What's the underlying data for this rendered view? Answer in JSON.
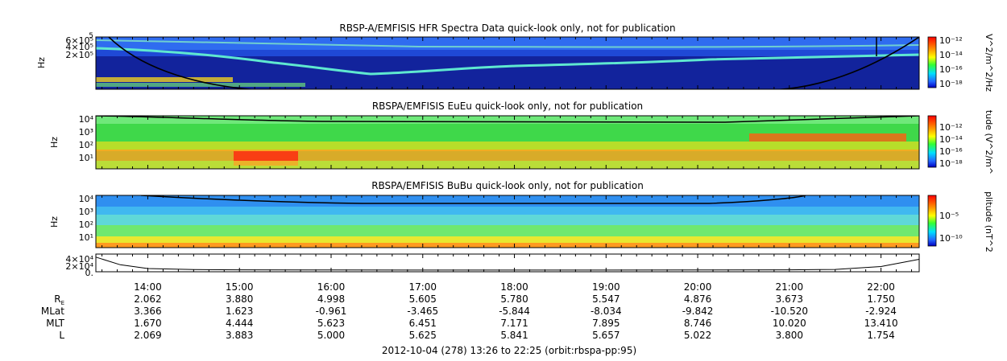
{
  "chart_data": {
    "type": "heatmap",
    "time_range": {
      "start": "13:26",
      "end": "22:25"
    },
    "x_ticks": [
      "14:00",
      "15:00",
      "16:00",
      "17:00",
      "18:00",
      "19:00",
      "20:00",
      "21:00",
      "22:00"
    ],
    "x_tick_hours": [
      14,
      15,
      16,
      17,
      18,
      19,
      20,
      21,
      22
    ],
    "panels": [
      {
        "title": "RBSP-A/EMFISIS  HFR Spectra Data quick-look only, not for publication",
        "ylabel": "Hz",
        "y_ticks": [
          "6×10⁵",
          "5",
          "4×10⁵",
          "2×10⁵"
        ],
        "colorbar_label": "V^2/m^2/Hz",
        "colorbar_ticks": [
          "10⁻¹²",
          "10⁻¹⁴",
          "10⁻¹⁶",
          "10⁻¹⁸"
        ],
        "background": "#12239c",
        "overlay_curve": "electron plasma frequency trace"
      },
      {
        "title": "RBSPA/EMFISIS  EuEu quick-look only, not for publication",
        "ylabel": "Hz",
        "y_ticks": [
          "10⁴",
          "10³",
          "10²",
          "10¹"
        ],
        "colorbar_label": "tude (V^2/m^",
        "colorbar_ticks": [
          "10⁻¹²",
          "10⁻¹⁴",
          "10⁻¹⁶",
          "10⁻¹⁸"
        ],
        "background": "#3fd84a"
      },
      {
        "title": "RBSPA/EMFISIS  BuBu quick-look only, not for publication",
        "ylabel": "Hz",
        "y_ticks": [
          "10⁴",
          "10³",
          "10²",
          "10¹"
        ],
        "colorbar_label": "plitude (nT^2",
        "colorbar_ticks": [
          "10⁻⁵",
          "10⁻¹⁰"
        ],
        "background": "#5fd8d8"
      },
      {
        "type": "line",
        "y_ticks": [
          "4×10⁴",
          "2×10⁴",
          "0."
        ],
        "x_hours": [
          13.43,
          13.7,
          14.0,
          14.5,
          15.0,
          16.0,
          17.0,
          18.0,
          19.0,
          20.0,
          21.0,
          21.5,
          22.0,
          22.42
        ],
        "values": [
          36000,
          15000,
          4500,
          1500,
          800,
          400,
          300,
          280,
          300,
          400,
          800,
          2000,
          10000,
          30000
        ]
      }
    ],
    "ephemeris": {
      "rows": [
        {
          "label": "R",
          "label_sub": "E",
          "values": [
            "2.062",
            "3.880",
            "4.998",
            "5.605",
            "5.780",
            "5.547",
            "4.876",
            "3.673",
            "1.750"
          ]
        },
        {
          "label": "MLat",
          "values": [
            "3.366",
            "1.623",
            "-0.961",
            "-3.465",
            "-5.844",
            "-8.034",
            "-9.842",
            "-10.520",
            "-2.924"
          ]
        },
        {
          "label": "MLT",
          "values": [
            "1.670",
            "4.444",
            "5.623",
            "6.451",
            "7.171",
            "7.895",
            "8.746",
            "10.020",
            "13.410"
          ]
        },
        {
          "label": "L",
          "values": [
            "2.069",
            "3.883",
            "5.000",
            "5.625",
            "5.841",
            "5.657",
            "5.022",
            "3.800",
            "1.754"
          ]
        }
      ]
    },
    "footer": "2012-10-04 (278) 13:26 to 22:25 (orbit:rbspa-pp:95)",
    "colormap": [
      "#ff0000",
      "#ff8c00",
      "#ffff00",
      "#00ff00",
      "#00e5ff",
      "#1e64ff",
      "#0000c8"
    ]
  }
}
